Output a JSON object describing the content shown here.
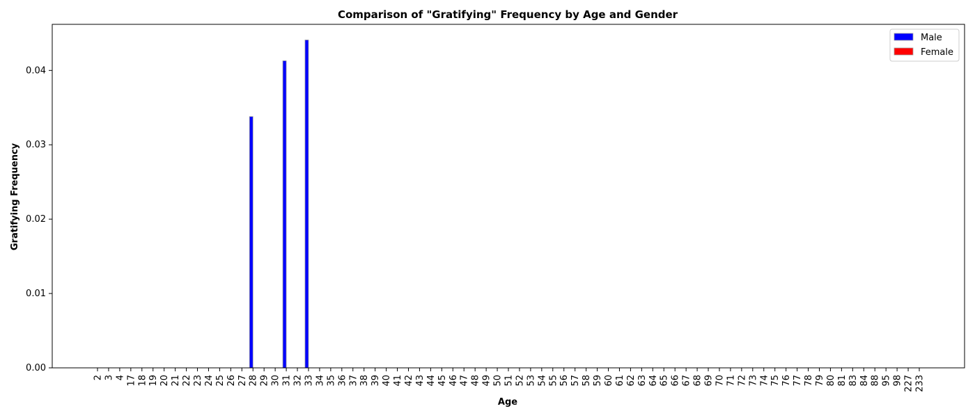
{
  "chart_data": {
    "type": "bar",
    "title": "Comparison of \"Gratifying\" Frequency by Age and Gender",
    "xlabel": "Age",
    "ylabel": "Gratifying Frequency",
    "ylim": [
      0,
      0.0462
    ],
    "yticks": [
      "0.00",
      "0.01",
      "0.02",
      "0.03",
      "0.04"
    ],
    "grid": false,
    "legend_position": "top-right",
    "categories": [
      "2",
      "3",
      "4",
      "17",
      "18",
      "19",
      "20",
      "21",
      "22",
      "23",
      "24",
      "25",
      "26",
      "27",
      "28",
      "29",
      "30",
      "31",
      "32",
      "33",
      "34",
      "35",
      "36",
      "37",
      "38",
      "39",
      "40",
      "41",
      "42",
      "43",
      "44",
      "45",
      "46",
      "47",
      "48",
      "49",
      "50",
      "51",
      "52",
      "53",
      "54",
      "55",
      "56",
      "57",
      "58",
      "59",
      "60",
      "61",
      "62",
      "63",
      "64",
      "65",
      "66",
      "67",
      "68",
      "69",
      "70",
      "71",
      "72",
      "73",
      "74",
      "75",
      "76",
      "77",
      "78",
      "79",
      "80",
      "81",
      "83",
      "84",
      "88",
      "95",
      "98",
      "227",
      "233"
    ],
    "series": [
      {
        "name": "Male",
        "color": "#0000ff",
        "values": [
          0,
          0,
          0,
          0,
          0,
          0,
          0,
          0,
          0,
          0,
          0,
          0,
          0,
          0,
          0.0338,
          0,
          0,
          0.0413,
          0,
          0.0441,
          0,
          0,
          0,
          0,
          0,
          0,
          0,
          0,
          0,
          0,
          0,
          0,
          0,
          0,
          0,
          0,
          0,
          0,
          0,
          0,
          0,
          0,
          0,
          0,
          0,
          0,
          0,
          0,
          0,
          0,
          0,
          0,
          0,
          0,
          0,
          0,
          0,
          0,
          0,
          0,
          0,
          0,
          0,
          0,
          0,
          0,
          0,
          0,
          0,
          0,
          0,
          0,
          0,
          0,
          0
        ]
      },
      {
        "name": "Female",
        "color": "#ff0000",
        "values": [
          0,
          0,
          0,
          0,
          0,
          0,
          0,
          0,
          0,
          0,
          0,
          0,
          0,
          0,
          0,
          0,
          0,
          0,
          0,
          0,
          0,
          0,
          0,
          0,
          0,
          0,
          0,
          0,
          0,
          0,
          0,
          0,
          0,
          0,
          0,
          0,
          0,
          0,
          0,
          0,
          0,
          0,
          0,
          0,
          0,
          0,
          0,
          0,
          0,
          0,
          0,
          0,
          0,
          0,
          0,
          0,
          0,
          0,
          0,
          0,
          0,
          0,
          0,
          0,
          0,
          0,
          0,
          0,
          0,
          0,
          0,
          0,
          0,
          0,
          0
        ]
      }
    ]
  }
}
